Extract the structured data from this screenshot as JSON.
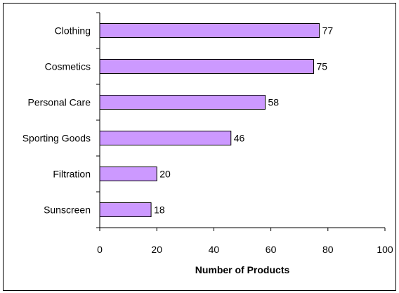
{
  "chart_data": {
    "type": "bar",
    "orientation": "horizontal",
    "title": "",
    "xlabel": "Number of Products",
    "ylabel": "",
    "categories": [
      "Clothing",
      "Cosmetics",
      "Personal Care",
      "Sporting Goods",
      "Filtration",
      "Sunscreen"
    ],
    "values": [
      77,
      75,
      58,
      46,
      20,
      18
    ],
    "data_labels": [
      "77",
      "75",
      "58",
      "46",
      "20",
      "18"
    ],
    "xlim": [
      0,
      100
    ],
    "x_ticks": [
      0,
      20,
      40,
      60,
      80,
      100
    ],
    "x_tick_labels": [
      "0",
      "20",
      "40",
      "60",
      "80",
      "100"
    ],
    "grid": false,
    "legend": "none",
    "colors": {
      "bar_fill": "#CC99FF",
      "bar_stroke": "#000000",
      "axis": "#000000",
      "frame": "#000000",
      "background": "#FFFFFF"
    }
  }
}
